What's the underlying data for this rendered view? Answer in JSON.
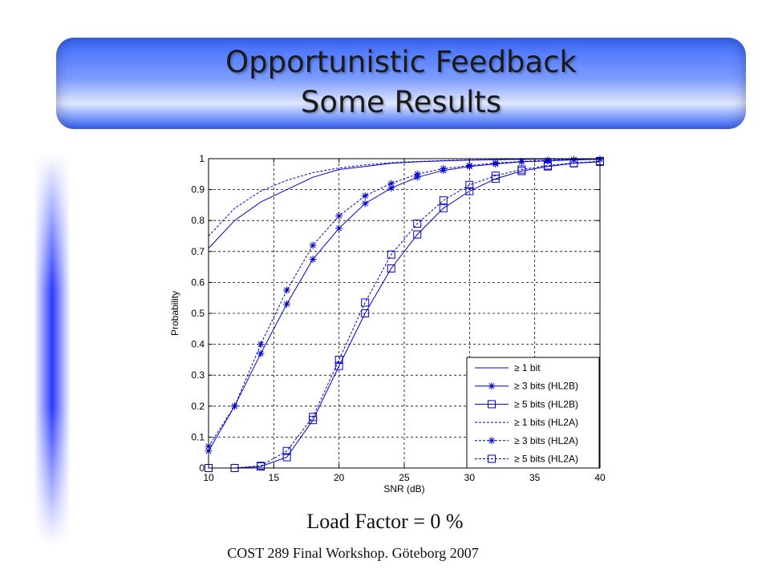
{
  "slide": {
    "title_line1": "Opportunistic Feedback",
    "title_line2": "Some Results",
    "caption": "Load Factor = 0 %",
    "footer": "COST 289 Final Workshop. Göteborg 2007"
  },
  "colors": {
    "banner": "#3d6bff",
    "series": "#0000cc"
  },
  "chart_data": {
    "type": "line",
    "xlabel": "SNR (dB)",
    "ylabel": "Probability",
    "xlim": [
      10,
      40
    ],
    "ylim": [
      0,
      1
    ],
    "xticks": [
      10,
      15,
      20,
      25,
      30,
      35,
      40
    ],
    "yticks": [
      0,
      0.1,
      0.2,
      0.3,
      0.4,
      0.5,
      0.6,
      0.7,
      0.8,
      0.9,
      1
    ],
    "ytick_labels": [
      "0",
      "0.1",
      "0.2",
      "0.3",
      "0.4",
      "0.5",
      "0.6",
      "0.7",
      "0.8",
      "0.9",
      "1"
    ],
    "grid": true,
    "legend_position": "bottom-right",
    "series": [
      {
        "name": "≥ 1 bit",
        "line": "solid",
        "marker": "none",
        "x": [
          10,
          12,
          14,
          16,
          18,
          20,
          22,
          24,
          26,
          28,
          30,
          32,
          34,
          36,
          38,
          40
        ],
        "y": [
          0.71,
          0.8,
          0.86,
          0.9,
          0.94,
          0.965,
          0.975,
          0.985,
          0.99,
          0.993,
          0.995,
          0.997,
          0.998,
          0.999,
          0.999,
          1.0
        ]
      },
      {
        "name": "≥ 3 bits (HL2B)",
        "line": "solid",
        "marker": "star",
        "x": [
          10,
          12,
          14,
          16,
          18,
          20,
          22,
          24,
          26,
          28,
          30,
          32,
          34,
          36,
          38,
          40
        ],
        "y": [
          0.055,
          0.2,
          0.37,
          0.53,
          0.675,
          0.775,
          0.855,
          0.905,
          0.94,
          0.962,
          0.975,
          0.983,
          0.99,
          0.993,
          0.996,
          0.998
        ]
      },
      {
        "name": "≥ 5 bits (HL2B)",
        "line": "solid",
        "marker": "square",
        "x": [
          10,
          12,
          14,
          16,
          18,
          20,
          22,
          24,
          26,
          28,
          30,
          32,
          34,
          36,
          38,
          40
        ],
        "y": [
          0.0,
          0.0,
          0.005,
          0.035,
          0.155,
          0.33,
          0.5,
          0.645,
          0.755,
          0.84,
          0.895,
          0.935,
          0.96,
          0.975,
          0.985,
          0.99
        ]
      },
      {
        "name": "≥ 1 bits (HL2A)",
        "line": "dashed",
        "marker": "none",
        "x": [
          10,
          12,
          14,
          16,
          18,
          20,
          22,
          24,
          26,
          28,
          30,
          32,
          34,
          36,
          38,
          40
        ],
        "y": [
          0.75,
          0.84,
          0.895,
          0.93,
          0.955,
          0.97,
          0.98,
          0.987,
          0.991,
          0.994,
          0.996,
          0.997,
          0.998,
          0.999,
          0.999,
          1.0
        ]
      },
      {
        "name": "≥ 3 bits (HL2A)",
        "line": "dashed",
        "marker": "star",
        "x": [
          10,
          12,
          14,
          16,
          18,
          20,
          22,
          24,
          26,
          28,
          30,
          32,
          34,
          36,
          38,
          40
        ],
        "y": [
          0.07,
          0.2,
          0.4,
          0.575,
          0.72,
          0.815,
          0.88,
          0.92,
          0.95,
          0.968,
          0.978,
          0.986,
          0.991,
          0.995,
          0.997,
          0.998
        ]
      },
      {
        "name": "≥ 5 bits (HL2A)",
        "line": "dashed",
        "marker": "square",
        "x": [
          10,
          12,
          14,
          16,
          18,
          20,
          22,
          24,
          26,
          28,
          30,
          32,
          34,
          36,
          38,
          40
        ],
        "y": [
          0.0,
          0.0,
          0.007,
          0.055,
          0.165,
          0.35,
          0.535,
          0.69,
          0.79,
          0.865,
          0.915,
          0.945,
          0.965,
          0.978,
          0.986,
          0.992
        ]
      }
    ]
  }
}
